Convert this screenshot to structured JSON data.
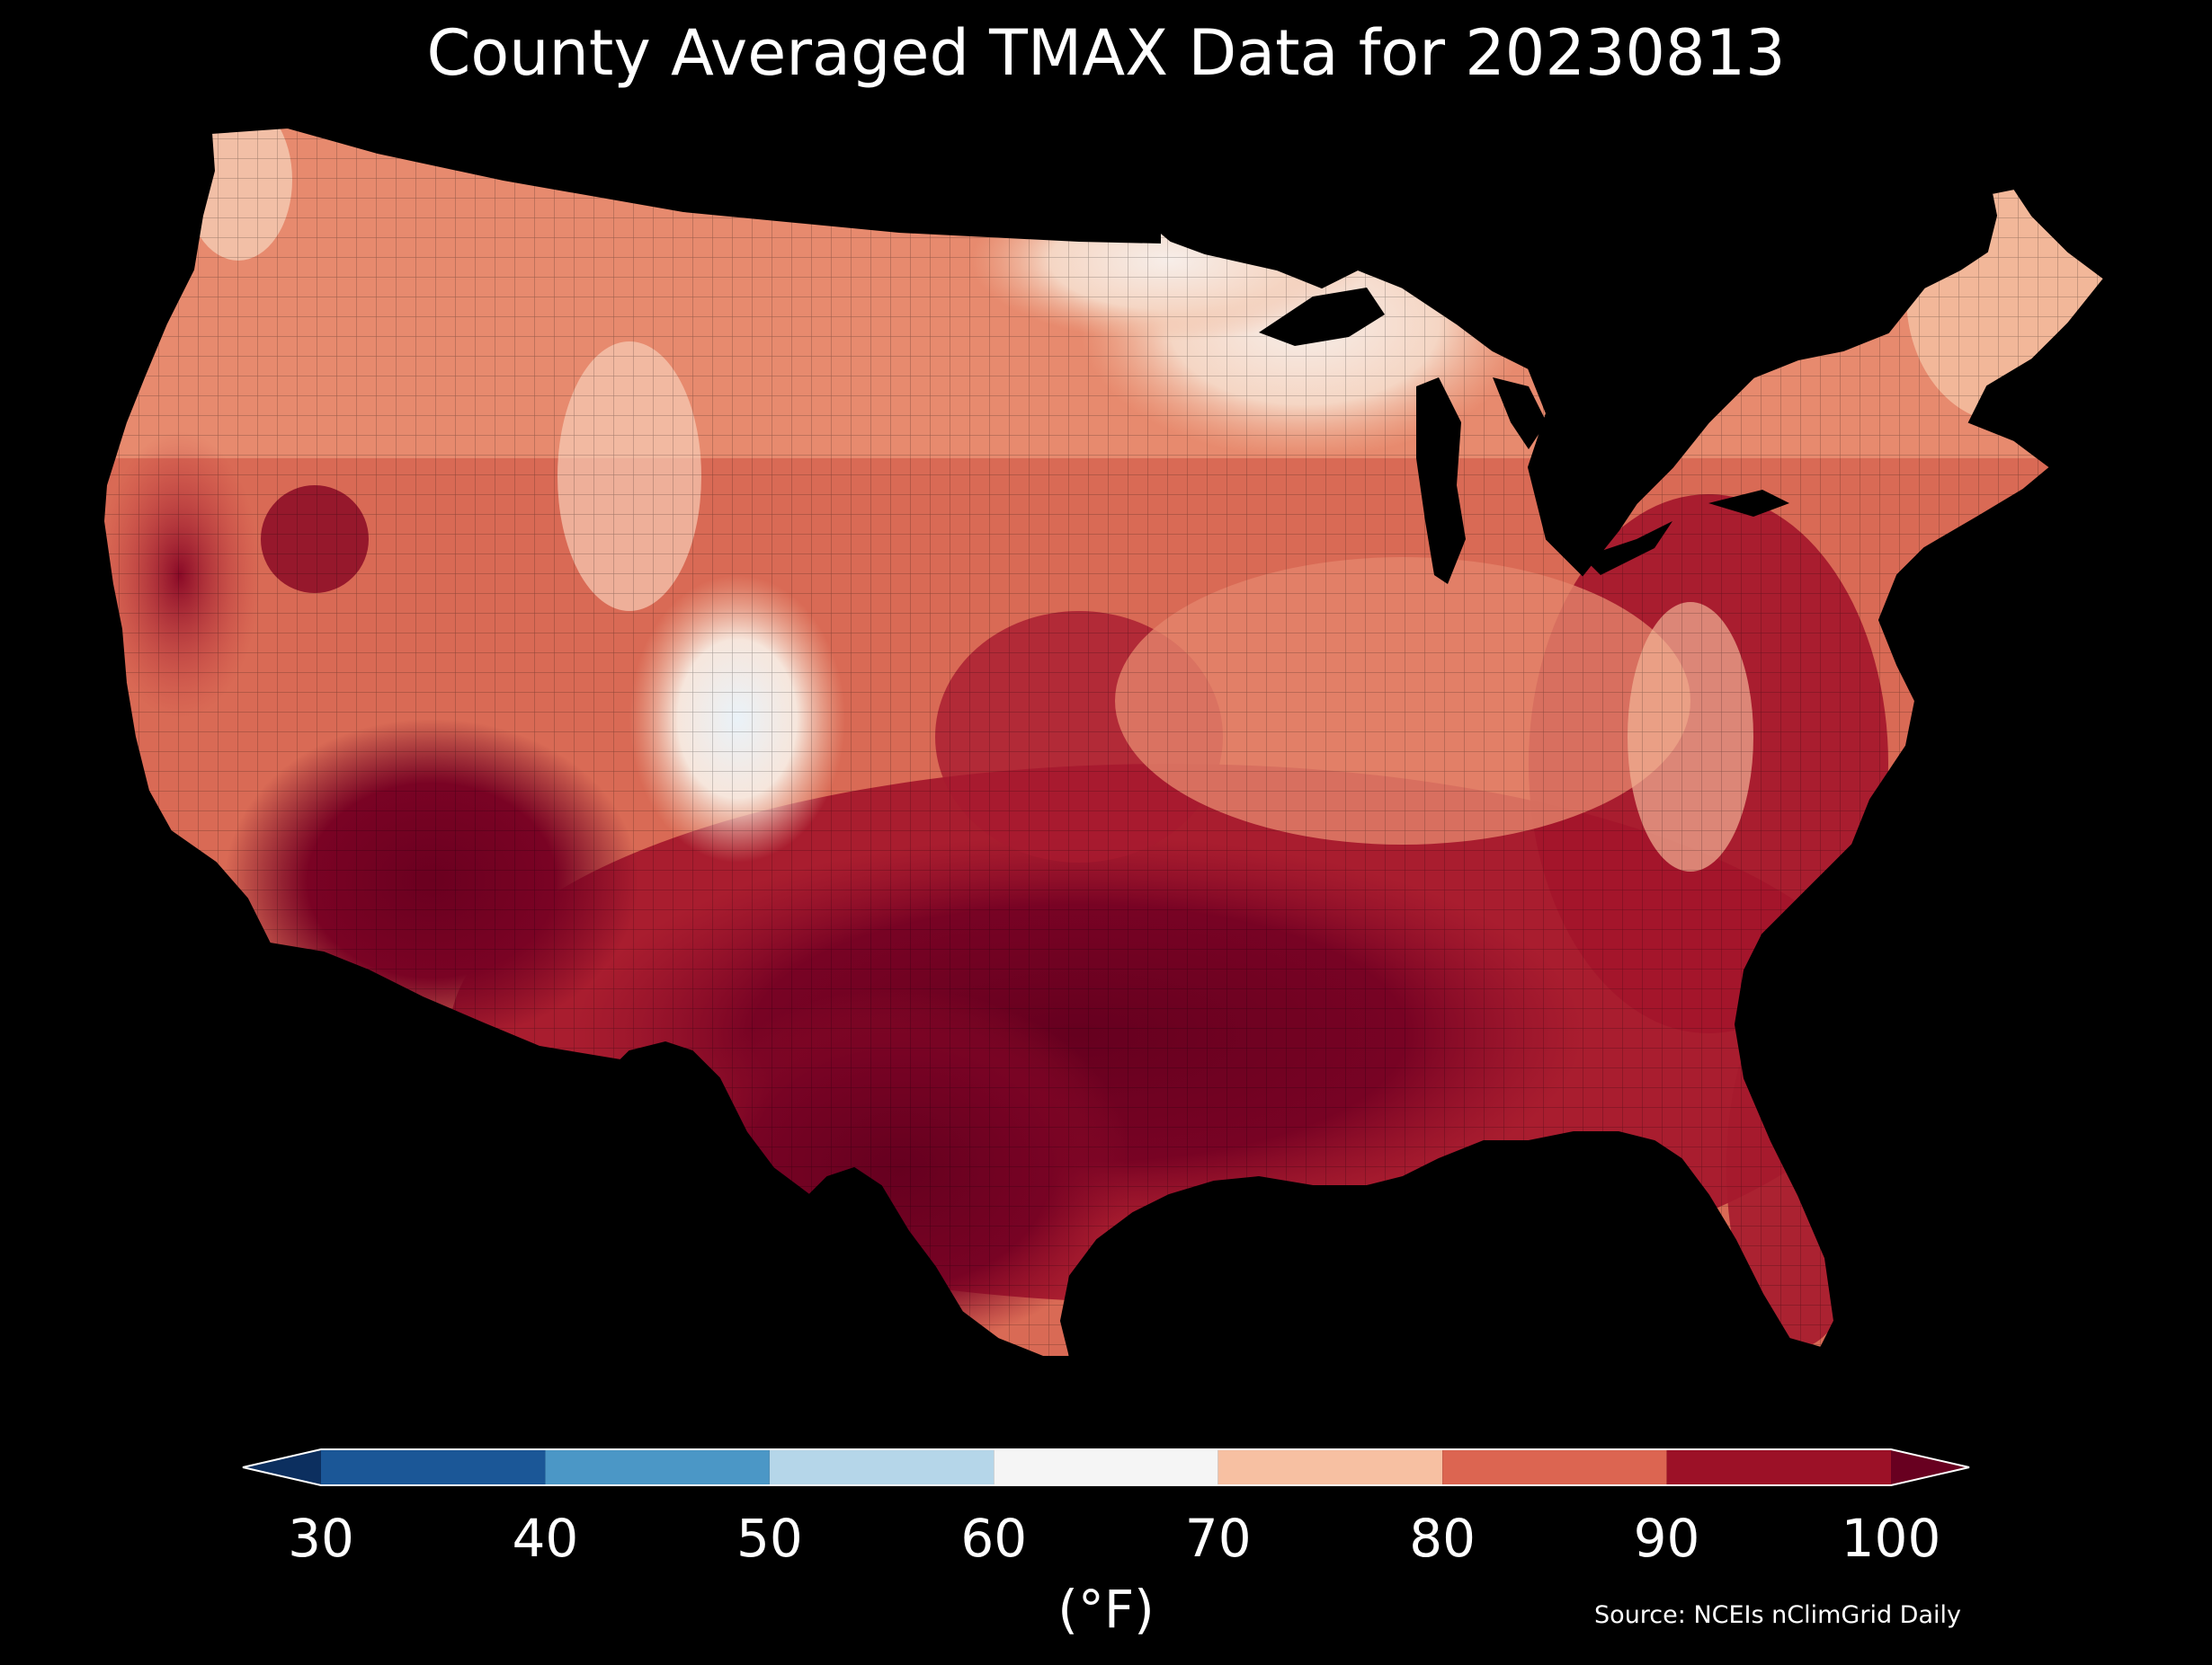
{
  "title": "County Averaged TMAX Data for 20230813",
  "colorbar": {
    "unit_label": "(°F)",
    "ticks": [
      "30",
      "40",
      "50",
      "60",
      "70",
      "80",
      "90",
      "100"
    ],
    "bins": [
      {
        "range": [
          20,
          30
        ],
        "color": "#0c2f5f"
      },
      {
        "range": [
          30,
          40
        ],
        "color": "#1b5797"
      },
      {
        "range": [
          40,
          50
        ],
        "color": "#4b97c6"
      },
      {
        "range": [
          50,
          60
        ],
        "color": "#b5d6e9"
      },
      {
        "range": [
          60,
          70
        ],
        "color": "#f5f5f5"
      },
      {
        "range": [
          70,
          80
        ],
        "color": "#f7c0a2"
      },
      {
        "range": [
          80,
          90
        ],
        "color": "#dc6551"
      },
      {
        "range": [
          90,
          100
        ],
        "color": "#9c1127"
      },
      {
        "range": [
          100,
          110
        ],
        "color": "#680020"
      }
    ],
    "extend": "both"
  },
  "source": "Source: NCEIs nClimGrid Daily",
  "map": {
    "region": "Contiguous United States counties",
    "variable": "TMAX",
    "date": "20230813",
    "regional_pattern": [
      {
        "region": "Desert Southwest / Arizona",
        "approx_f": 100,
        "color": "#6b0020"
      },
      {
        "region": "Texas / Gulf Coast / Deep South",
        "approx_f": 100,
        "color": "#6b0020"
      },
      {
        "region": "Southeast / Carolinas / Florida",
        "approx_f": 92,
        "color": "#a3152b"
      },
      {
        "region": "Central California valley",
        "approx_f": 95,
        "color": "#8e0f28"
      },
      {
        "region": "Southern Plains / Kansas",
        "approx_f": 92,
        "color": "#b21f31"
      },
      {
        "region": "Midwest / Ohio Valley",
        "approx_f": 82,
        "color": "#e07f69"
      },
      {
        "region": "Northern Plains / Northern Rockies",
        "approx_f": 78,
        "color": "#efa587"
      },
      {
        "region": "Upper Great Lakes / Minnesota",
        "approx_f": 68,
        "color": "#f6e8e0"
      },
      {
        "region": "Colorado high Rockies",
        "approx_f": 60,
        "color": "#eef4f8"
      },
      {
        "region": "New England / Maine",
        "approx_f": 75,
        "color": "#f4b99a"
      },
      {
        "region": "Pacific Northwest coast",
        "approx_f": 74,
        "color": "#f1c3a9"
      }
    ]
  }
}
